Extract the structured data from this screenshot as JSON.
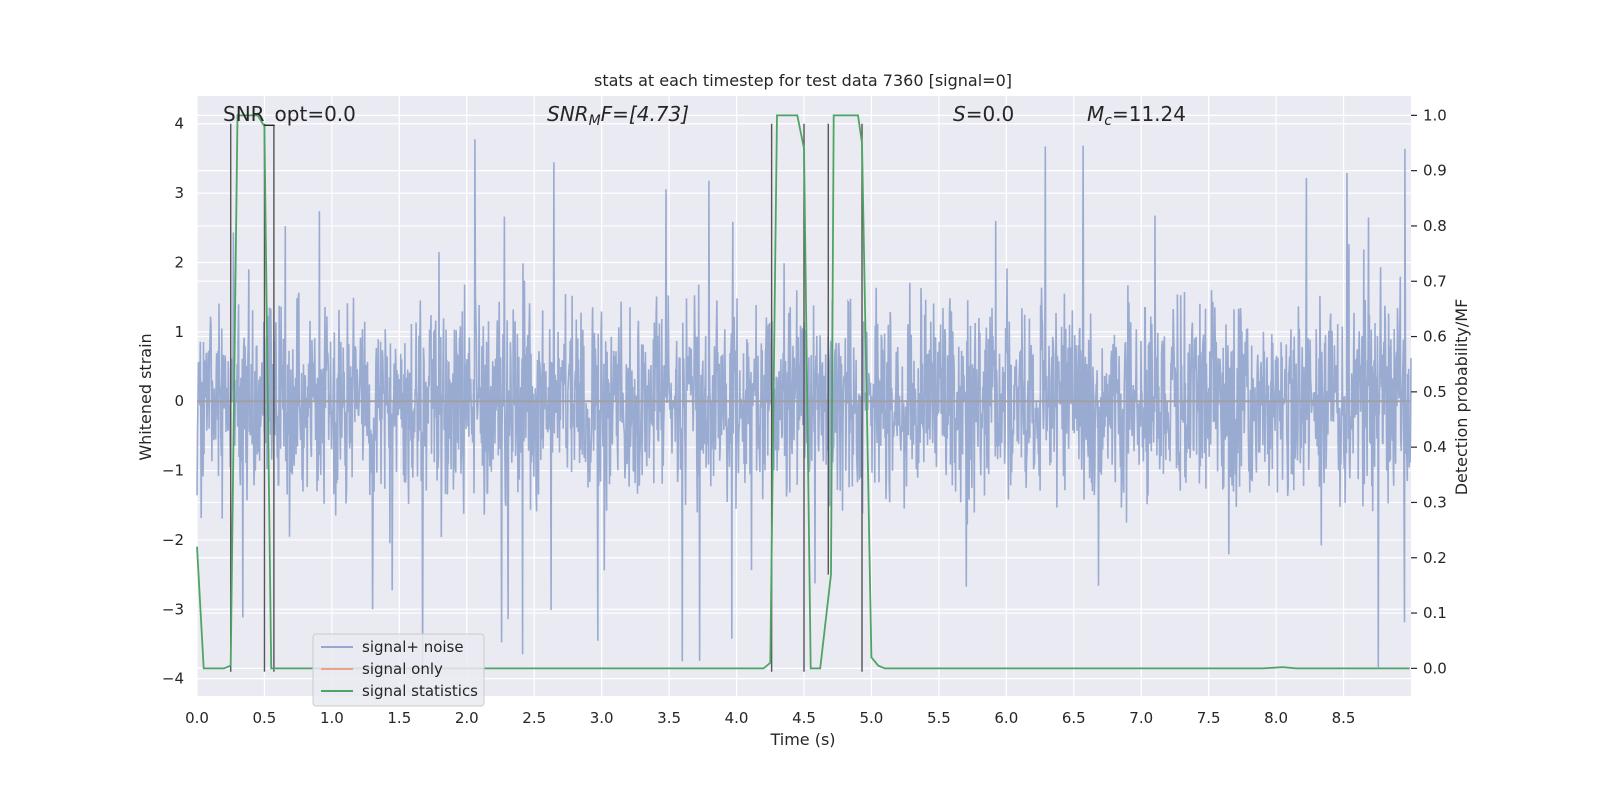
{
  "chart_data": {
    "type": "line",
    "title": "stats at each timestep for test data 7360 [signal=0]",
    "xlabel": "Time (s)",
    "ylabel": "Whitened strain",
    "ylabel_right": "Detection probability/MF",
    "xlim": [
      0,
      9.0
    ],
    "ylim": [
      -4.25,
      4.4
    ],
    "ylim_right": [
      -0.05,
      1.035
    ],
    "xticks": [
      0.0,
      0.5,
      1.0,
      1.5,
      2.0,
      2.5,
      3.0,
      3.5,
      4.0,
      4.5,
      5.0,
      5.5,
      6.0,
      6.5,
      7.0,
      7.5,
      8.0,
      8.5
    ],
    "xtick_labels": [
      "0.0",
      "0.5",
      "1.0",
      "1.5",
      "2.0",
      "2.5",
      "3.0",
      "3.5",
      "4.0",
      "4.5",
      "5.0",
      "5.5",
      "6.0",
      "6.5",
      "7.0",
      "7.5",
      "8.0",
      "8.5"
    ],
    "yticks": [
      -4,
      -3,
      -2,
      -1,
      0,
      1,
      2,
      3,
      4
    ],
    "ytick_labels": [
      "−4",
      "−3",
      "−2",
      "−1",
      "0",
      "1",
      "2",
      "3",
      "4"
    ],
    "yticks_right": [
      0.0,
      0.1,
      0.2,
      0.3,
      0.4,
      0.5,
      0.6,
      0.7,
      0.8,
      0.9,
      1.0
    ],
    "ytick_labels_right": [
      "0.0",
      "0.1",
      "0.2",
      "0.3",
      "0.4",
      "0.5",
      "0.6",
      "0.7",
      "0.8",
      "0.9",
      "1.0"
    ],
    "grid": true,
    "legend_placement": "lower-left",
    "annotations": {
      "snr_opt": "SNR_opt=0.0",
      "snr_mf_prefix": "SNR",
      "snr_mf_sub": "M",
      "snr_mf_suffix": "F=[4.73]",
      "s_symbol": "S",
      "s_value": "=0.0",
      "mc_symbol": "M",
      "mc_sub": "c",
      "mc_value": "=11.24"
    },
    "series": [
      {
        "name": "signal+ noise",
        "color": "#96a8cf",
        "axis": "left",
        "kind": "noise",
        "typical_abs_max": 1.6,
        "spike_max": 3.9
      },
      {
        "name": "signal only",
        "color": "#e8a38a",
        "axis": "left",
        "values": [
          0
        ]
      },
      {
        "name": "signal statistics",
        "color": "#4fa464",
        "axis": "right",
        "x": [
          0.0,
          0.05,
          0.2,
          0.25,
          0.3,
          0.45,
          0.5,
          0.55,
          0.8,
          1.9,
          4.2,
          4.25,
          4.3,
          4.45,
          4.5,
          4.55,
          4.62,
          4.7,
          4.72,
          4.78,
          4.9,
          4.93,
          5.0,
          5.05,
          5.1,
          5.2,
          7.9,
          8.05,
          8.15,
          8.99
        ],
        "values": [
          0.22,
          0.0,
          0.0,
          0.005,
          1.0,
          1.0,
          0.98,
          0.0,
          0.0,
          0.0,
          0.0,
          0.01,
          1.0,
          1.0,
          0.94,
          0.0,
          0.0,
          0.17,
          1.0,
          1.0,
          1.0,
          0.95,
          0.02,
          0.005,
          0.0,
          0.0,
          0.0,
          0.002,
          0.0,
          0.0
        ]
      }
    ],
    "vertical_markers": {
      "color": "#555555",
      "x": [
        0.25,
        0.5,
        0.57,
        4.26,
        4.5,
        4.68,
        4.93
      ],
      "y_from": [
        -3.9,
        -3.9,
        -3.9,
        -3.9,
        -3.9,
        -2.5,
        -3.9
      ],
      "y_to": [
        4.0,
        4.0,
        3.97,
        4.0,
        4.0,
        4.0,
        4.0
      ]
    }
  }
}
